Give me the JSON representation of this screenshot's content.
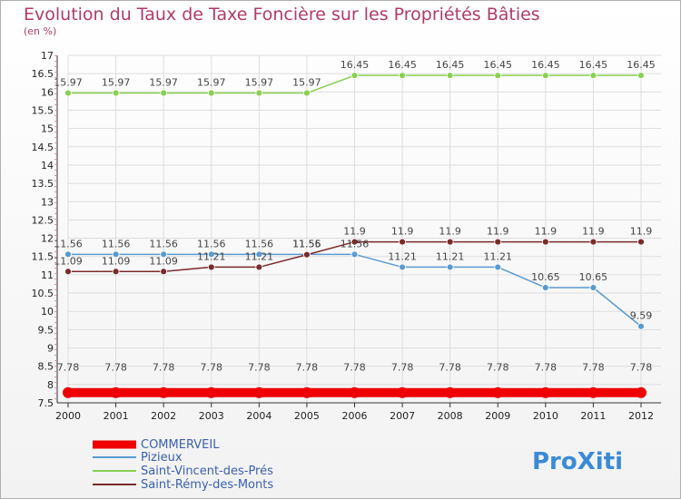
{
  "chart_data": {
    "type": "line",
    "title": "Evolution du Taux de Taxe Foncière sur les Propriétés Bâties",
    "subtitle": "(en %)",
    "xlabel": "",
    "ylabel": "",
    "x": [
      "2000",
      "2001",
      "2002",
      "2003",
      "2004",
      "2005",
      "2006",
      "2007",
      "2008",
      "2009",
      "2010",
      "2011",
      "2012"
    ],
    "ylim": [
      7.5,
      17
    ],
    "yticks": [
      "7.5",
      "8",
      "8.5",
      "9",
      "9.5",
      "10",
      "10.5",
      "11",
      "11.5",
      "12",
      "12.5",
      "13",
      "13.5",
      "14",
      "14.5",
      "15",
      "15.5",
      "16",
      "16.5",
      "17"
    ],
    "grid": true,
    "legend_position": "bottom-left",
    "series": [
      {
        "name": "COMMERVEIL",
        "color": "#ee0000",
        "values": [
          7.78,
          7.78,
          7.78,
          7.78,
          7.78,
          7.78,
          7.78,
          7.78,
          7.78,
          7.78,
          7.78,
          7.78,
          7.78
        ],
        "labels": [
          "7.78",
          "7.78",
          "7.78",
          "7.78",
          "7.78",
          "7.78",
          "7.78",
          "7.78",
          "7.78",
          "7.78",
          "7.78",
          "7.78",
          "7.78"
        ]
      },
      {
        "name": "Pizieux",
        "color": "#5a9bd0",
        "values": [
          11.56,
          11.56,
          11.56,
          11.56,
          11.56,
          11.56,
          11.56,
          11.21,
          11.21,
          11.21,
          10.65,
          10.65,
          9.59
        ],
        "labels": [
          "11.56",
          "11.56",
          "11.56",
          "11.56",
          "11.56",
          "11.56",
          "11.56",
          "11.21",
          "11.21",
          "11.21",
          "10.65",
          "10.65",
          "9.59"
        ]
      },
      {
        "name": "Saint-Vincent-des-Prés",
        "color": "#88d050",
        "values": [
          15.97,
          15.97,
          15.97,
          15.97,
          15.97,
          15.97,
          16.45,
          16.45,
          16.45,
          16.45,
          16.45,
          16.45,
          16.45
        ],
        "labels": [
          "15.97",
          "15.97",
          "15.97",
          "15.97",
          "15.97",
          "15.97",
          "16.45",
          "16.45",
          "16.45",
          "16.45",
          "16.45",
          "16.45",
          "16.45"
        ]
      },
      {
        "name": "Saint-Rémy-des-Monts",
        "color": "#7a2a2a",
        "values": [
          11.09,
          11.09,
          11.09,
          11.21,
          11.21,
          11.55,
          11.9,
          11.9,
          11.9,
          11.9,
          11.9,
          11.9,
          11.9
        ],
        "labels": [
          "11.09",
          "11.09",
          "11.09",
          "11.21",
          "11.21",
          "11.55",
          "11.9",
          "11.9",
          "11.9",
          "11.9",
          "11.9",
          "11.9",
          "11.9"
        ]
      }
    ]
  },
  "logo": {
    "text": "ProXiti"
  }
}
